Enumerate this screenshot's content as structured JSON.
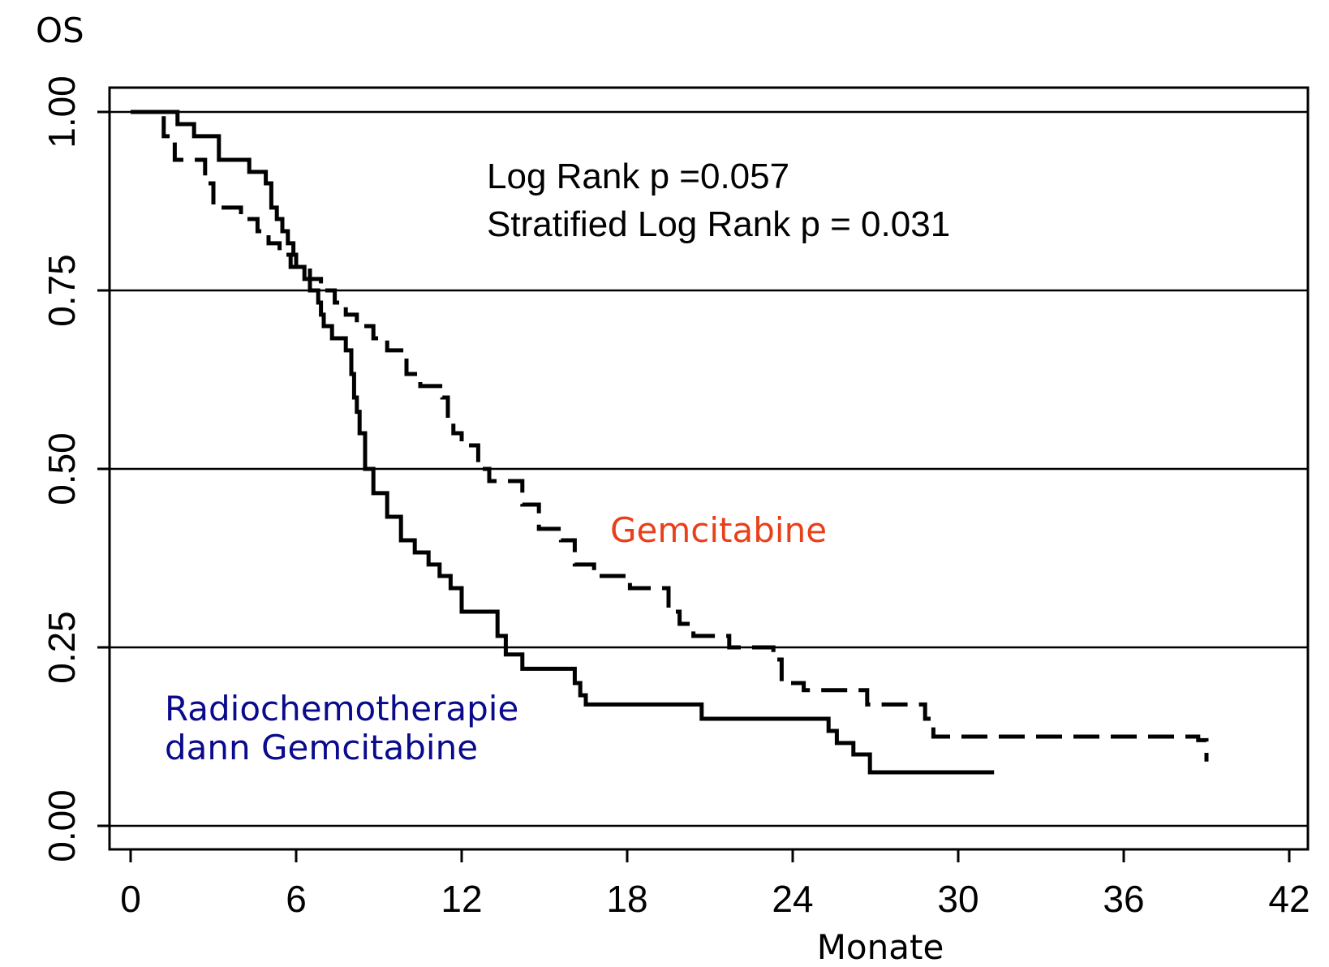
{
  "chart_data": {
    "type": "line",
    "title": "",
    "ylabel": "OS",
    "xlabel": "Monate",
    "xlim": [
      0,
      42
    ],
    "ylim": [
      0,
      1
    ],
    "x_ticks": [
      "0",
      "6",
      "12",
      "18",
      "24",
      "30",
      "36",
      "42"
    ],
    "y_ticks": [
      "0.00",
      "0.25",
      "0.50",
      "0.75",
      "1.00"
    ],
    "grid": "horizontal",
    "annotations": [
      "Log Rank p =0.057",
      "Stratified Log Rank p = 0.031"
    ],
    "series": [
      {
        "name": "Radiochemotherapie dann Gemcitabine",
        "label_lines": [
          "Radiochemotherapie",
          "dann Gemcitabine"
        ],
        "color": "#0a0a8c",
        "line_color": "#000000",
        "style": "solid",
        "step": true,
        "x": [
          0,
          1.7,
          2.3,
          3.2,
          4.3,
          4.9,
          5.1,
          5.3,
          5.5,
          5.7,
          5.9,
          6.0,
          6.3,
          6.5,
          6.8,
          6.9,
          7.0,
          7.3,
          7.8,
          8.0,
          8.1,
          8.2,
          8.3,
          8.5,
          8.8,
          9.3,
          9.8,
          10.3,
          10.8,
          11.2,
          11.6,
          12.0,
          13.3,
          13.6,
          14.2,
          16.1,
          16.3,
          16.5,
          20.7,
          25.3,
          25.6,
          26.2,
          26.8,
          31.3
        ],
        "y": [
          1.0,
          0.983,
          0.966,
          0.933,
          0.916,
          0.9,
          0.866,
          0.85,
          0.833,
          0.816,
          0.8,
          0.783,
          0.766,
          0.75,
          0.733,
          0.716,
          0.7,
          0.683,
          0.666,
          0.633,
          0.6,
          0.58,
          0.55,
          0.5,
          0.466,
          0.433,
          0.4,
          0.383,
          0.366,
          0.35,
          0.333,
          0.3,
          0.266,
          0.24,
          0.22,
          0.2,
          0.183,
          0.17,
          0.15,
          0.133,
          0.116,
          0.1,
          0.075,
          0.075
        ]
      },
      {
        "name": "Gemcitabine",
        "label_lines": [
          "Gemcitabine"
        ],
        "color": "#e8401a",
        "line_color": "#000000",
        "style": "dashed",
        "step": true,
        "x": [
          0,
          1.2,
          1.6,
          2.7,
          3.0,
          4.0,
          4.6,
          5.0,
          5.4,
          5.8,
          6.5,
          6.9,
          7.4,
          7.8,
          8.2,
          8.8,
          9.3,
          10.0,
          10.5,
          11.3,
          11.5,
          11.7,
          12.0,
          12.6,
          13.0,
          14.2,
          14.8,
          15.6,
          16.1,
          16.8,
          18.1,
          19.5,
          19.9,
          20.4,
          21.7,
          23.3,
          23.6,
          24.4,
          26.7,
          28.8,
          29.1,
          38.7,
          39.0
        ],
        "y": [
          1.0,
          0.966,
          0.933,
          0.9,
          0.866,
          0.85,
          0.833,
          0.816,
          0.8,
          0.783,
          0.766,
          0.75,
          0.733,
          0.716,
          0.7,
          0.683,
          0.666,
          0.633,
          0.616,
          0.6,
          0.566,
          0.55,
          0.533,
          0.5,
          0.483,
          0.45,
          0.416,
          0.4,
          0.366,
          0.35,
          0.333,
          0.3,
          0.283,
          0.266,
          0.25,
          0.233,
          0.2,
          0.19,
          0.17,
          0.15,
          0.125,
          0.12,
          0.09
        ]
      }
    ]
  }
}
